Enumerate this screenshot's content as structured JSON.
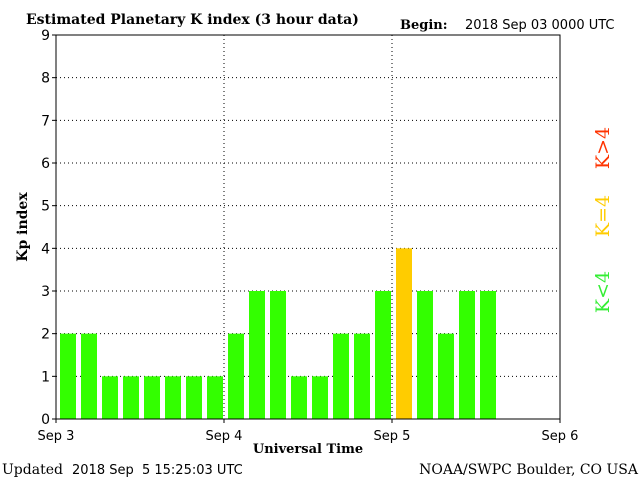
{
  "header": {
    "title": "Estimated Planetary K index (3 hour data)",
    "begin_label": "Begin:",
    "begin_value": "2018 Sep 03 0000 UTC"
  },
  "footer": {
    "updated_label": "Updated",
    "updated_value": "2018 Sep  5 15:25:03 UTC",
    "credit": "NOAA/SWPC Boulder, CO USA"
  },
  "side_legend": [
    {
      "text": "K>4",
      "color": "#ff3300"
    },
    {
      "text": "K=4",
      "color": "#ffcc00"
    },
    {
      "text": "K<4",
      "color": "#33ee33"
    }
  ],
  "chart_data": {
    "type": "bar",
    "title": "Estimated Planetary K index (3 hour data)",
    "xlabel": "Universal Time",
    "ylabel": "Kp index",
    "ylim": [
      0,
      9
    ],
    "yticks": [
      0,
      1,
      2,
      3,
      4,
      5,
      6,
      7,
      8,
      9
    ],
    "xticks": [
      "Sep 3",
      "Sep 4",
      "Sep 5",
      "Sep 6"
    ],
    "slots_total": 24,
    "grid": true,
    "colors": {
      "below": "#33ff00",
      "equal": "#ffcc00",
      "above": "#ff3300"
    },
    "values": [
      2,
      2,
      1,
      1,
      1,
      1,
      1,
      1,
      2,
      3,
      3,
      1,
      1,
      2,
      2,
      3,
      4,
      3,
      2,
      3,
      3
    ]
  }
}
